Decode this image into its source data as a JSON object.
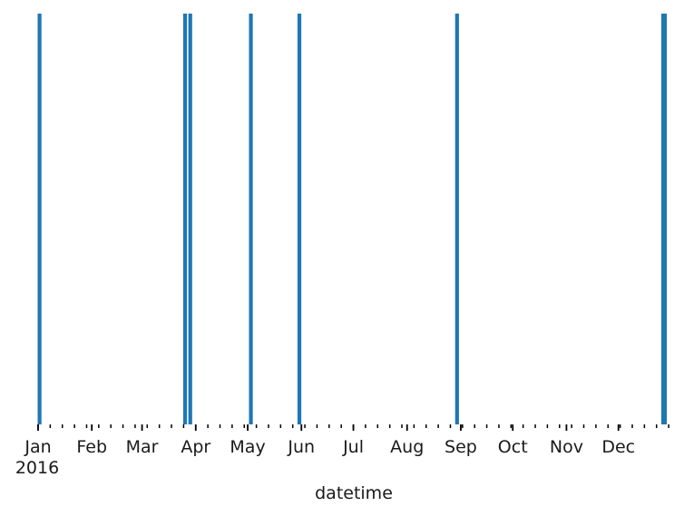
{
  "chart_data": {
    "type": "bar",
    "title": "",
    "xlabel": "datetime",
    "ylabel": "",
    "x_axis": {
      "kind": "date",
      "range": [
        "2016-01-01",
        "2016-12-31"
      ],
      "tick_labels": [
        "Jan",
        "Feb",
        "Mar",
        "Apr",
        "May",
        "Jun",
        "Jul",
        "Aug",
        "Sep",
        "Oct",
        "Nov",
        "Dec"
      ],
      "tick_dates": [
        "2016-01-01",
        "2016-02-01",
        "2016-03-01",
        "2016-04-01",
        "2016-05-01",
        "2016-06-01",
        "2016-07-01",
        "2016-08-01",
        "2016-09-01",
        "2016-10-01",
        "2016-11-01",
        "2016-12-01"
      ],
      "year_label": "2016",
      "minor_ticks": "weekly"
    },
    "y_axis_visible": false,
    "grid": false,
    "legend": "none",
    "bar_color": "#1f77b4",
    "bars": [
      {
        "date": "2016-01-01",
        "value": 1
      },
      {
        "date": "2016-03-25",
        "value": 1
      },
      {
        "date": "2016-03-28",
        "value": 1
      },
      {
        "date": "2016-05-02",
        "value": 1
      },
      {
        "date": "2016-05-30",
        "value": 1
      },
      {
        "date": "2016-08-29",
        "value": 1
      },
      {
        "date": "2016-12-26",
        "value": 1
      },
      {
        "date": "2016-12-27",
        "value": 1
      }
    ]
  }
}
